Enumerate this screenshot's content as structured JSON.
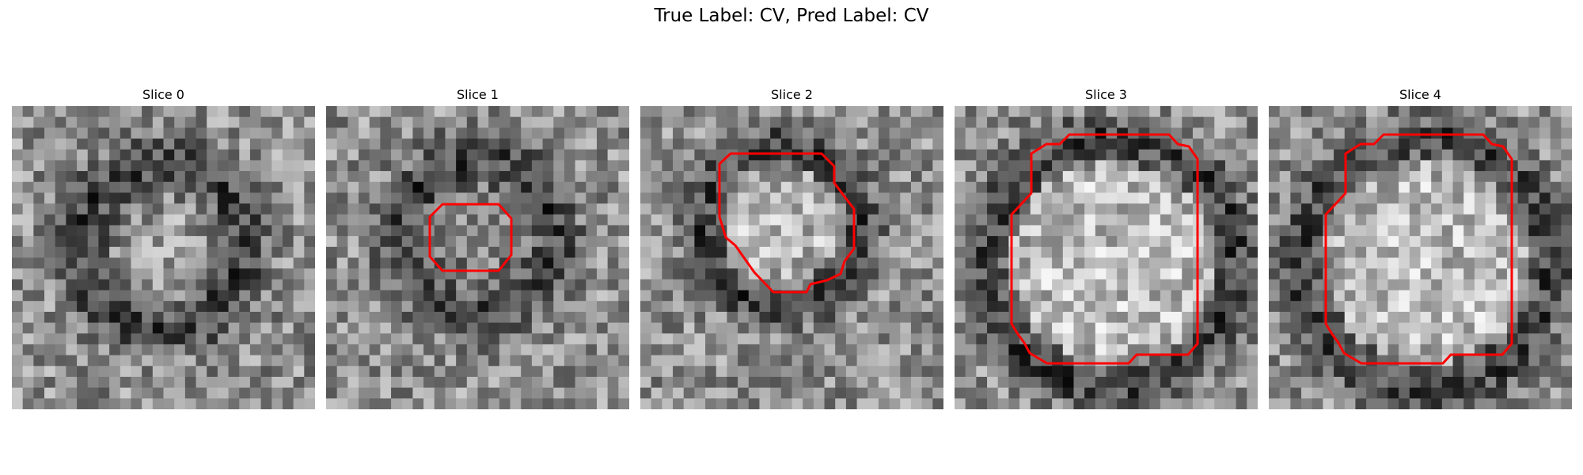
{
  "figure": {
    "title": "True Label: CV, Pred Label: CV",
    "contour_color": "#ff0000"
  },
  "slices": [
    {
      "title": "Slice 0",
      "has_contour": false
    },
    {
      "title": "Slice 1",
      "has_contour": true
    },
    {
      "title": "Slice 2",
      "has_contour": true
    },
    {
      "title": "Slice 3",
      "has_contour": true
    },
    {
      "title": "Slice 4",
      "has_contour": true
    }
  ]
}
